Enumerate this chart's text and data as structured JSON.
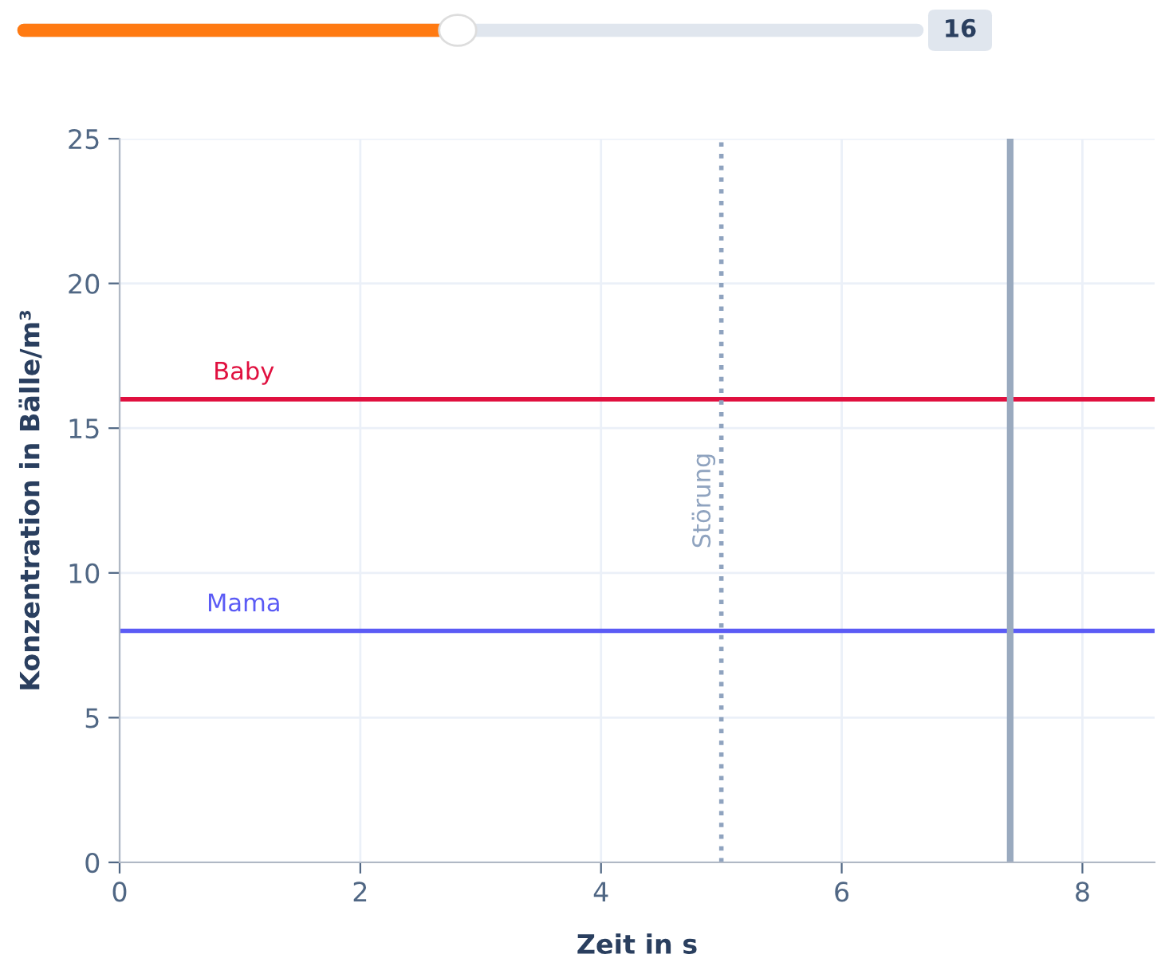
{
  "chart_data": {
    "type": "line",
    "xlabel": "Zeit in s",
    "ylabel": "Konzentration in Bälle/m³",
    "x": [
      0,
      8.6
    ],
    "xlim": [
      0,
      8.6
    ],
    "ylim": [
      0,
      25
    ],
    "xticks": [
      0,
      2,
      4,
      6,
      8
    ],
    "yticks": [
      0,
      5,
      10,
      15,
      20,
      25
    ],
    "series": [
      {
        "name": "Baby",
        "color": "#e0103f",
        "values": [
          16,
          16
        ]
      },
      {
        "name": "Mama",
        "color": "#5b5bf5",
        "values": [
          8,
          8
        ]
      }
    ],
    "ref_lines": [
      {
        "axis": "x",
        "value": 5,
        "label": "Störung",
        "color": "#8fa3bf",
        "line_style": "dotted"
      },
      {
        "axis": "x",
        "value": 7.4,
        "label": null,
        "color": "#9aaabf",
        "line_style": "solid"
      }
    ],
    "annotations": [
      "16"
    ],
    "grid": true,
    "marker": "none",
    "line_style": "solid"
  }
}
